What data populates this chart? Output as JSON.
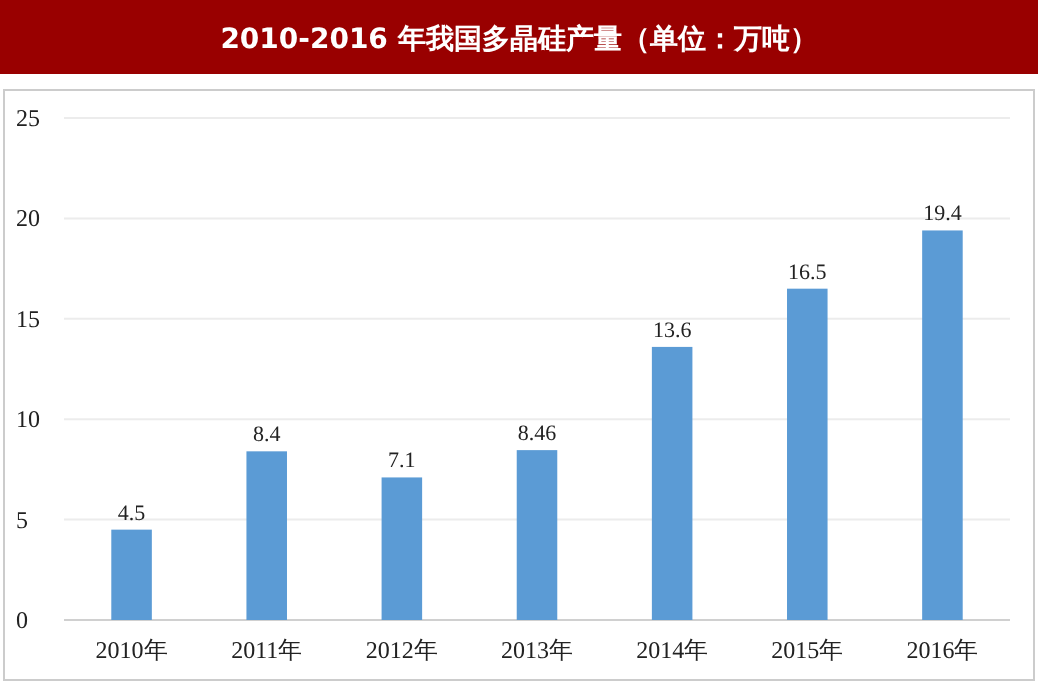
{
  "chart_data": {
    "type": "bar",
    "title": "2010-2016 年我国多晶硅产量（单位：万吨）",
    "categories": [
      "2010年",
      "2011年",
      "2012年",
      "2013年",
      "2014年",
      "2015年",
      "2016年"
    ],
    "values": [
      4.5,
      8.4,
      7.1,
      8.46,
      13.6,
      16.5,
      19.4
    ],
    "color": "#5b9bd5",
    "ylim": [
      0,
      25
    ],
    "yticks": [
      0,
      5,
      10,
      15,
      20,
      25
    ],
    "grid": "y",
    "data_labels": true
  }
}
